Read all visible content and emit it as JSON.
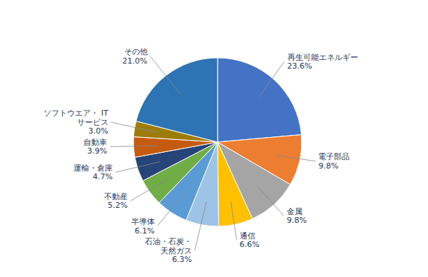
{
  "chart_data": {
    "type": "pie",
    "categories": [
      "再生可能エネルギー",
      "電子部品",
      "金属",
      "通信",
      "石油・石炭・\n天然ガス",
      "半導体",
      "不動産",
      "運輸・倉庫",
      "自動車",
      "ソフトウエア・ IT\nサービス",
      "その他"
    ],
    "values": [
      23.6,
      9.8,
      9.8,
      6.6,
      6.3,
      6.1,
      5.2,
      4.7,
      3.9,
      3.0,
      21.0
    ],
    "value_labels": [
      "23.6%",
      "9.8%",
      "9.8%",
      "6.6%",
      "6.3%",
      "6.1%",
      "5.2%",
      "4.7%",
      "3.9%",
      "3.0%",
      "21.0%"
    ],
    "colors": [
      "#4472C4",
      "#ED7D31",
      "#A5A5A5",
      "#FFC000",
      "#9DC3E6",
      "#5B9BD5",
      "#70AD47",
      "#264478",
      "#C55A11",
      "#9E7C0C",
      "#2E74B5"
    ],
    "data_labels": true
  }
}
